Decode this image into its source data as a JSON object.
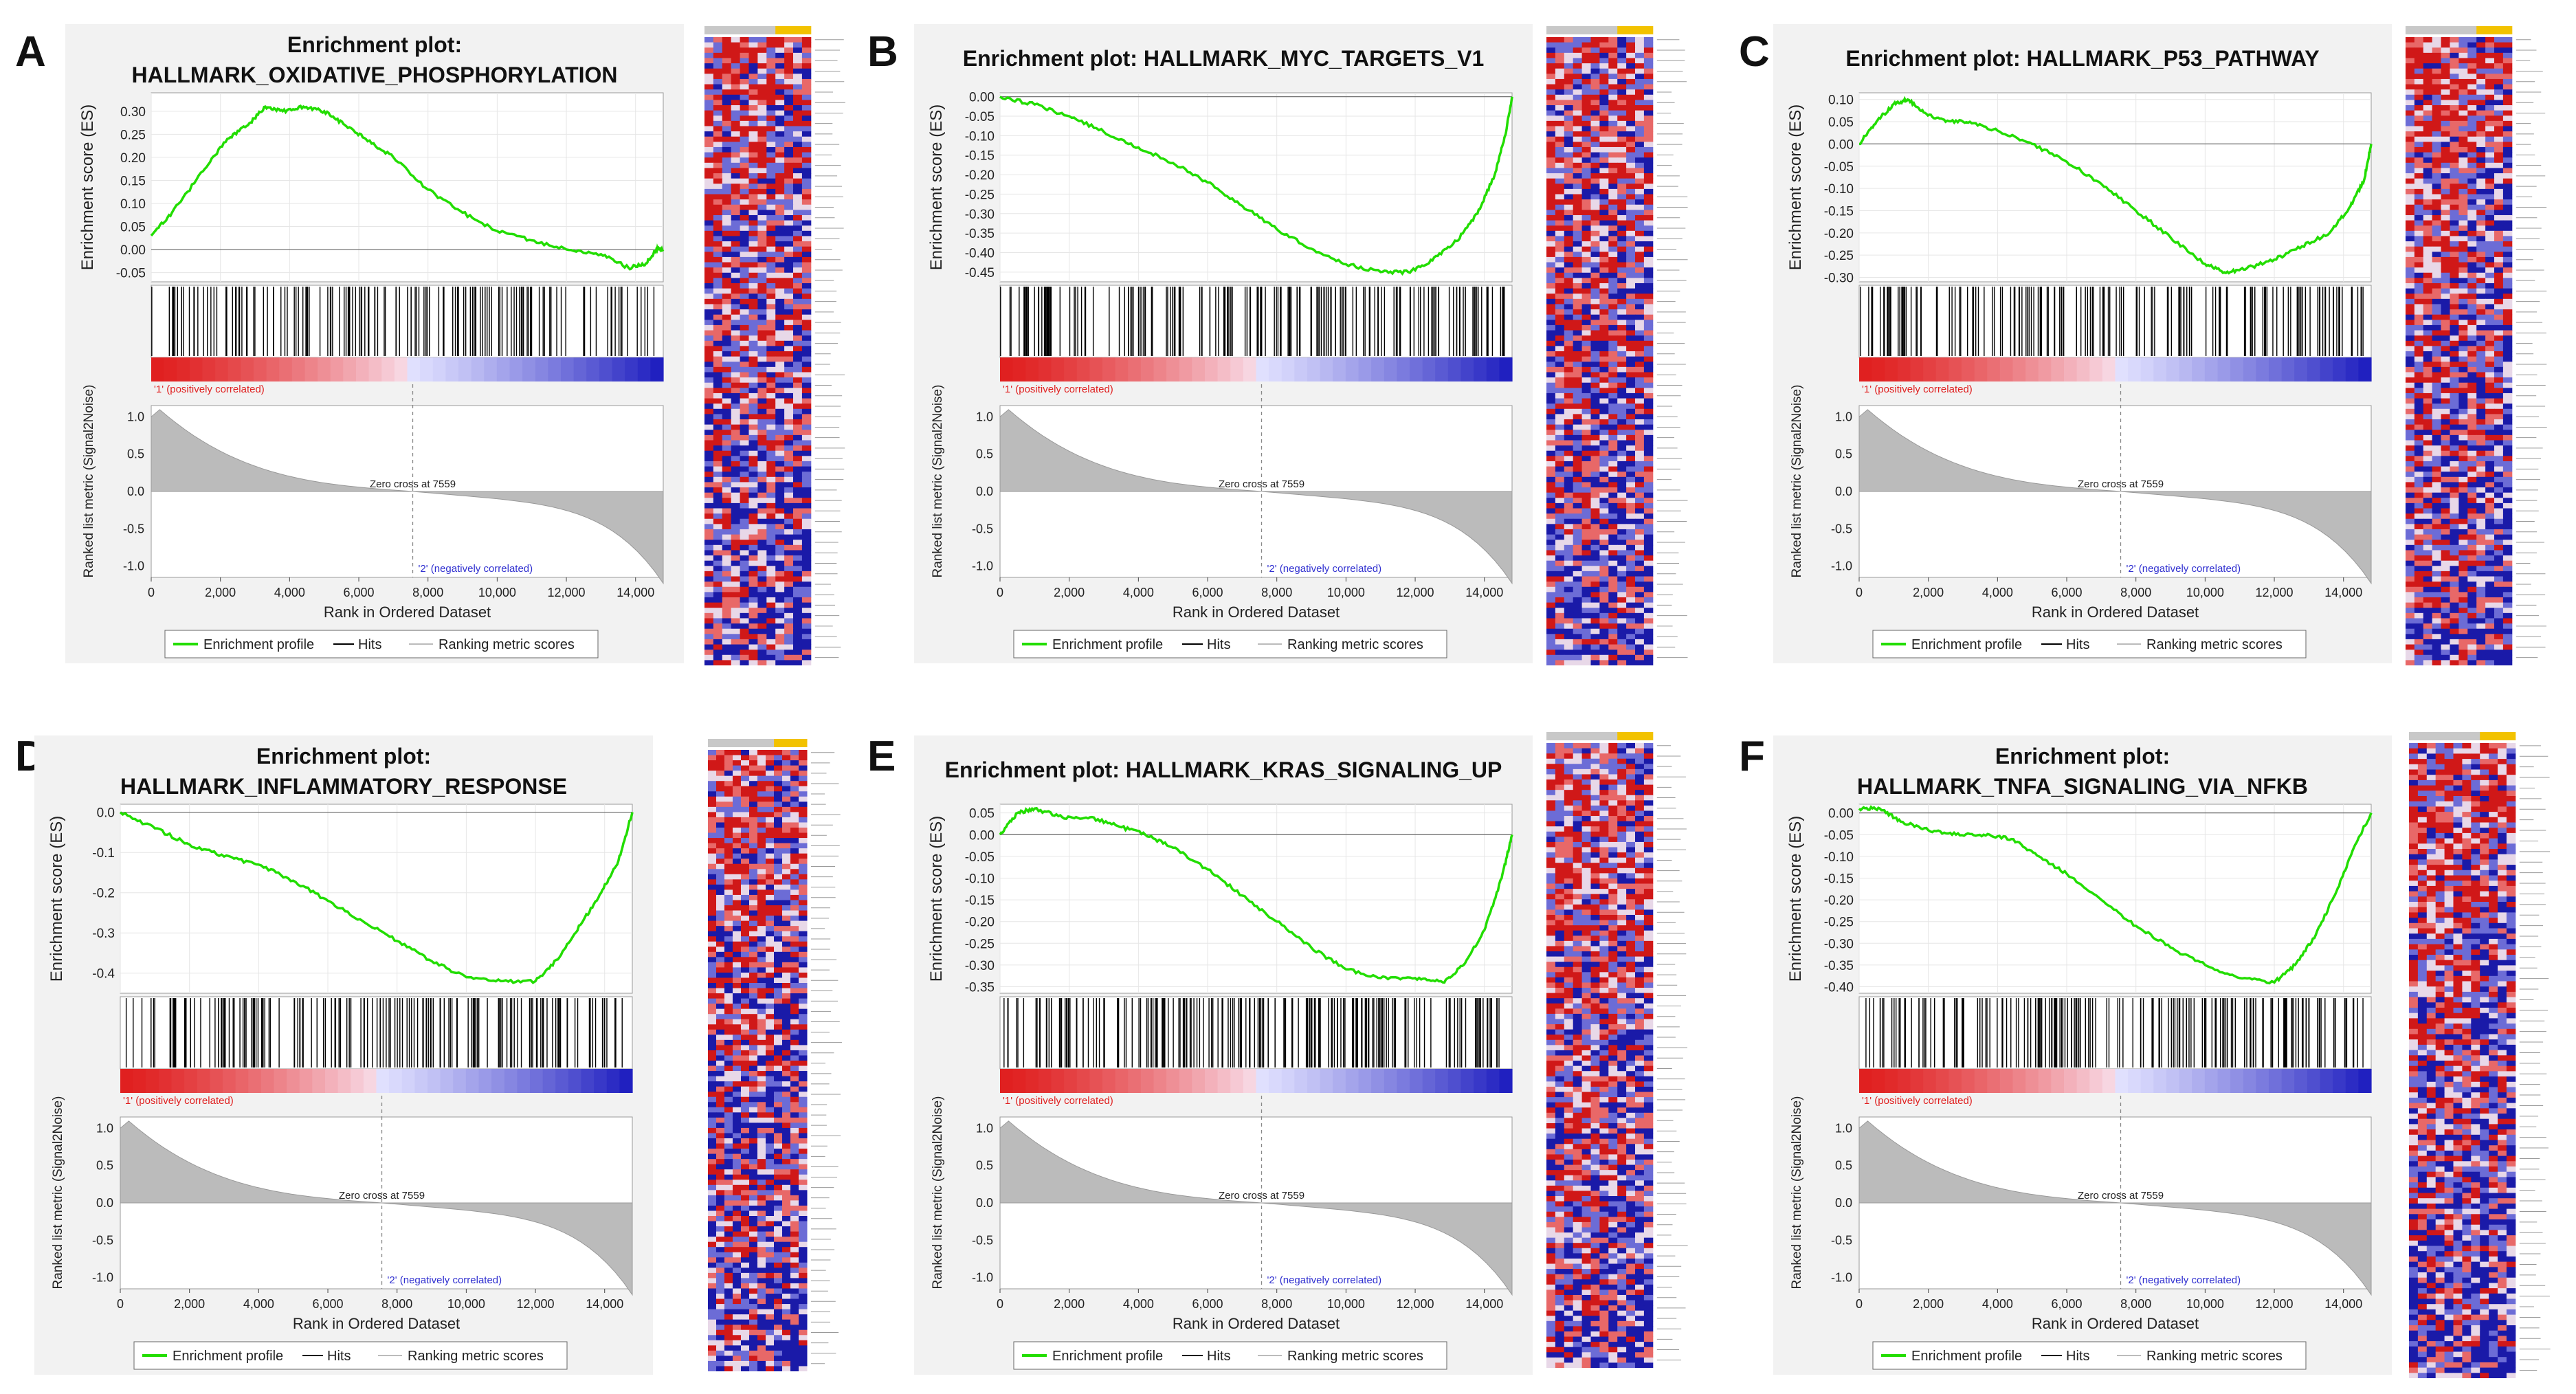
{
  "figure": {
    "x_axis_label": "Rank in Ordered Dataset",
    "es_axis_label": "Enrichment score (ES)",
    "metric_axis_label": "Ranked list metric (Signal2Noise)",
    "pos_label": "'1' (positively correlated)",
    "neg_label": "'2' (negatively correlated)",
    "zero_cross_label": "Zero cross at 7559",
    "legend": [
      "Enrichment profile",
      "Hits",
      "Ranking metric scores"
    ],
    "x_ticks": [
      0,
      2000,
      4000,
      6000,
      8000,
      10000,
      12000,
      14000
    ],
    "x_tick_labels": [
      "0",
      "2,000",
      "4,000",
      "6,000",
      "8,000",
      "10,000",
      "12,000",
      "14,000"
    ],
    "metric_ticks": [
      "1.0",
      "0.5",
      "0.0",
      "-0.5",
      "-1.0"
    ],
    "xlim": [
      0,
      14800
    ],
    "zero_cross": 7559,
    "colors": {
      "es_line": "#22dd00",
      "hit": "#000000",
      "metric_fill": "#bbbbbb",
      "pos": "#e02020",
      "neg": "#2020c0",
      "pos_text": "#e02020",
      "neg_text": "#3030d0"
    }
  },
  "chart_data": [
    {
      "letter": "A",
      "type": "line",
      "title": "Enrichment plot:",
      "title2": "HALLMARK_OXIDATIVE_PHOSPHORYLATION",
      "xlabel": "Rank in Ordered Dataset",
      "ylabel": "Enrichment score (ES)",
      "ylim": [
        -0.07,
        0.34
      ],
      "yticks": [
        0.3,
        0.25,
        0.2,
        0.15,
        0.1,
        0.05,
        0.0,
        -0.05
      ],
      "ytick_labels": [
        "0.30",
        "0.25",
        "0.20",
        "0.15",
        "0.10",
        "0.05",
        "0.00",
        "-0.05"
      ],
      "es_x": [
        0,
        600,
        1500,
        2200,
        2800,
        3300,
        3800,
        4400,
        5000,
        5600,
        6200,
        7000,
        8000,
        9000,
        10000,
        11000,
        12000,
        13000,
        13800,
        14300,
        14600,
        14800
      ],
      "es_y": [
        0.03,
        0.08,
        0.17,
        0.24,
        0.27,
        0.31,
        0.3,
        0.31,
        0.3,
        0.27,
        0.24,
        0.2,
        0.13,
        0.08,
        0.04,
        0.02,
        0.0,
        -0.01,
        -0.04,
        -0.03,
        0.0,
        0.0
      ],
      "hits_seed": 11,
      "hits_count": 150
    },
    {
      "letter": "B",
      "type": "line",
      "title": "Enrichment plot: HALLMARK_MYC_TARGETS_V1",
      "title2": "",
      "xlabel": "Rank in Ordered Dataset",
      "ylabel": "Enrichment score (ES)",
      "ylim": [
        -0.475,
        0.01
      ],
      "yticks": [
        0.0,
        -0.05,
        -0.1,
        -0.15,
        -0.2,
        -0.25,
        -0.3,
        -0.35,
        -0.4,
        -0.45
      ],
      "ytick_labels": [
        "0.00",
        "-0.05",
        "-0.10",
        "-0.15",
        "-0.20",
        "-0.25",
        "-0.30",
        "-0.35",
        "-0.40",
        "-0.45"
      ],
      "es_x": [
        0,
        1000,
        2000,
        3000,
        4000,
        5000,
        6000,
        7000,
        8000,
        9000,
        10000,
        11000,
        11800,
        12500,
        13200,
        13800,
        14300,
        14600,
        14800
      ],
      "es_y": [
        0.0,
        -0.02,
        -0.05,
        -0.09,
        -0.13,
        -0.17,
        -0.22,
        -0.28,
        -0.34,
        -0.39,
        -0.43,
        -0.45,
        -0.45,
        -0.42,
        -0.37,
        -0.3,
        -0.2,
        -0.1,
        0.0
      ],
      "hits_seed": 23,
      "hits_count": 190
    },
    {
      "letter": "C",
      "type": "line",
      "title": "Enrichment plot: HALLMARK_P53_PATHWAY",
      "title2": "",
      "xlabel": "Rank in Ordered Dataset",
      "ylabel": "Enrichment score (ES)",
      "ylim": [
        -0.31,
        0.115
      ],
      "yticks": [
        0.1,
        0.05,
        0.0,
        -0.05,
        -0.1,
        -0.15,
        -0.2,
        -0.25,
        -0.3
      ],
      "ytick_labels": [
        "0.10",
        "0.05",
        "0.00",
        "-0.05",
        "-0.10",
        "-0.15",
        "-0.20",
        "-0.25",
        "-0.30"
      ],
      "es_x": [
        0,
        500,
        1000,
        1400,
        1900,
        2500,
        3200,
        4000,
        5000,
        6000,
        7000,
        8000,
        9000,
        10000,
        10600,
        11200,
        12000,
        12800,
        13600,
        14200,
        14600,
        14800
      ],
      "es_y": [
        0.0,
        0.05,
        0.09,
        0.1,
        0.07,
        0.05,
        0.05,
        0.03,
        0.0,
        -0.04,
        -0.09,
        -0.15,
        -0.21,
        -0.27,
        -0.29,
        -0.28,
        -0.26,
        -0.23,
        -0.2,
        -0.14,
        -0.08,
        0.0
      ],
      "hits_seed": 37,
      "hits_count": 165
    },
    {
      "letter": "D",
      "type": "line",
      "title": "Enrichment plot:",
      "title2": "HALLMARK_INFLAMMATORY_RESPONSE",
      "xlabel": "Rank in Ordered Dataset",
      "ylabel": "Enrichment score (ES)",
      "ylim": [
        -0.45,
        0.02
      ],
      "yticks": [
        0.0,
        -0.1,
        -0.2,
        -0.3,
        -0.4
      ],
      "ytick_labels": [
        "0.0",
        "-0.1",
        "-0.2",
        "-0.3",
        "-0.4"
      ],
      "es_x": [
        0,
        1000,
        2000,
        3000,
        4000,
        5000,
        6000,
        7000,
        8000,
        9000,
        10000,
        11000,
        12000,
        12700,
        13300,
        13900,
        14400,
        14800
      ],
      "es_y": [
        0.0,
        -0.04,
        -0.08,
        -0.11,
        -0.13,
        -0.17,
        -0.22,
        -0.27,
        -0.32,
        -0.37,
        -0.41,
        -0.42,
        -0.42,
        -0.36,
        -0.28,
        -0.2,
        -0.12,
        0.0
      ],
      "hits_seed": 53,
      "hits_count": 170
    },
    {
      "letter": "E",
      "type": "line",
      "title": "Enrichment plot: HALLMARK_KRAS_SIGNALING_UP",
      "title2": "",
      "xlabel": "Rank in Ordered Dataset",
      "ylabel": "Enrichment score (ES)",
      "ylim": [
        -0.365,
        0.07
      ],
      "yticks": [
        0.05,
        0.0,
        -0.05,
        -0.1,
        -0.15,
        -0.2,
        -0.25,
        -0.3,
        -0.35
      ],
      "ytick_labels": [
        "0.05",
        "0.00",
        "-0.05",
        "-0.10",
        "-0.15",
        "-0.20",
        "-0.25",
        "-0.30",
        "-0.35"
      ],
      "es_x": [
        0,
        500,
        1000,
        1800,
        2600,
        3400,
        4200,
        5000,
        6000,
        7000,
        8000,
        9000,
        10000,
        11000,
        12000,
        12800,
        13400,
        14000,
        14500,
        14800
      ],
      "es_y": [
        0.0,
        0.05,
        0.06,
        0.04,
        0.04,
        0.02,
        0.0,
        -0.03,
        -0.08,
        -0.14,
        -0.2,
        -0.26,
        -0.31,
        -0.33,
        -0.33,
        -0.34,
        -0.3,
        -0.22,
        -0.1,
        0.0
      ],
      "hits_seed": 71,
      "hits_count": 195
    },
    {
      "letter": "F",
      "type": "line",
      "title": "Enrichment plot:",
      "title2": "HALLMARK_TNFA_SIGNALING_VIA_NFKB",
      "xlabel": "Rank in Ordered Dataset",
      "ylabel": "Enrichment score (ES)",
      "ylim": [
        -0.415,
        0.02
      ],
      "yticks": [
        0.0,
        -0.05,
        -0.1,
        -0.15,
        -0.2,
        -0.25,
        -0.3,
        -0.35,
        -0.4
      ],
      "ytick_labels": [
        "0.00",
        "-0.05",
        "-0.10",
        "-0.15",
        "-0.20",
        "-0.25",
        "-0.30",
        "-0.35",
        "-0.40"
      ],
      "es_x": [
        0,
        600,
        1200,
        2000,
        2800,
        3600,
        4400,
        5200,
        6000,
        7000,
        8000,
        9000,
        10000,
        11000,
        12000,
        12600,
        13200,
        13800,
        14300,
        14800
      ],
      "es_y": [
        0.01,
        0.01,
        -0.02,
        -0.04,
        -0.05,
        -0.05,
        -0.06,
        -0.1,
        -0.14,
        -0.2,
        -0.26,
        -0.31,
        -0.35,
        -0.38,
        -0.39,
        -0.35,
        -0.28,
        -0.18,
        -0.08,
        0.0
      ],
      "hits_seed": 89,
      "hits_count": 185
    }
  ]
}
